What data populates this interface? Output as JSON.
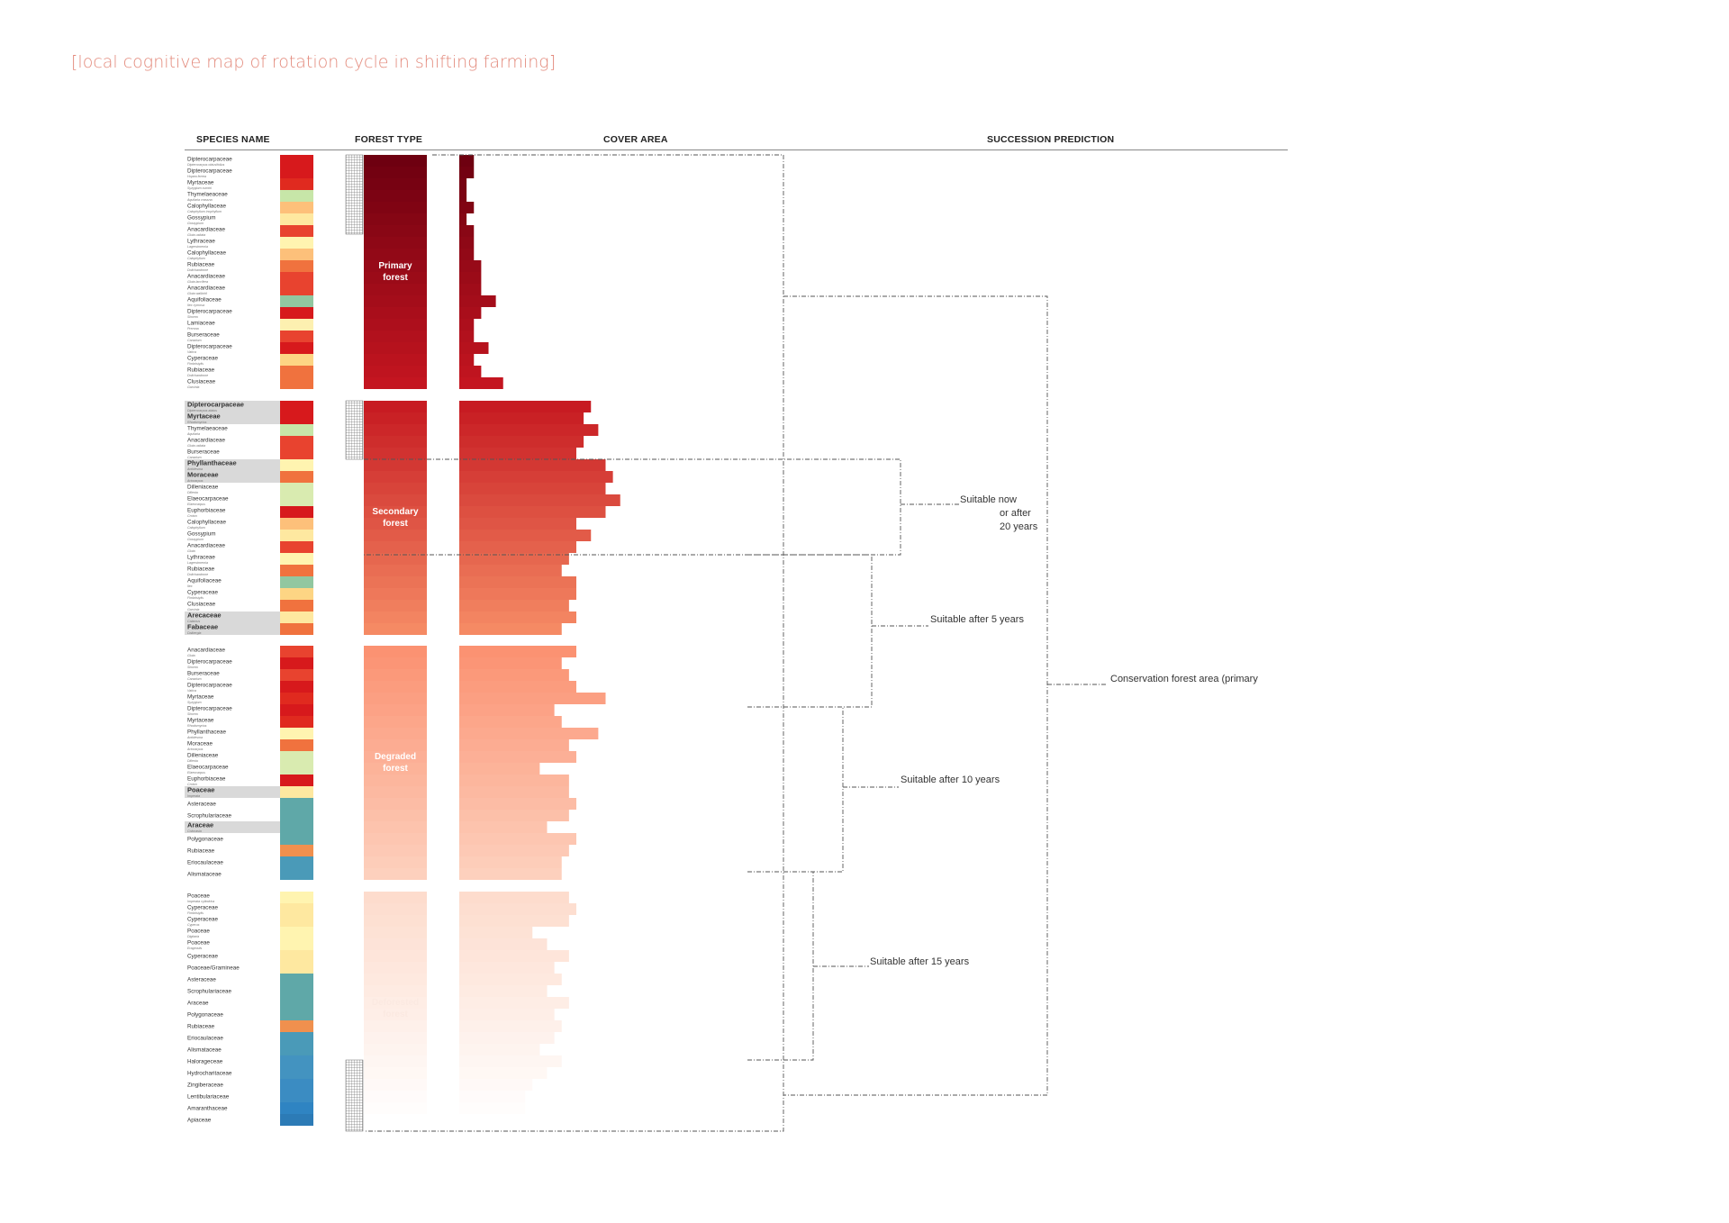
{
  "title": "[local cognitive map of rotation cycle in shifting farming]",
  "headers": {
    "species": "SPECIES NAME",
    "forest_type": "FOREST TYPE",
    "cover_area": "COVER AREA",
    "succession": "SUCCESSION PREDICTION"
  },
  "forest_types": [
    {
      "label": "Primary forest",
      "color": "#a8101c"
    },
    {
      "label": "Secondary forest",
      "color": "#e0504a"
    },
    {
      "label": "Degraded forest",
      "color": "#f8a88a"
    },
    {
      "label": "Deforested forest",
      "color": "#fde8de"
    }
  ],
  "succession_labels": {
    "now_or_after_20": "Suitable now\nor after\n20 years",
    "after_5": "Suitable after 5 years",
    "after_10": "Suitable  after 10 years",
    "after_15": "Suitable after 15 years",
    "conservation": "Conservation forest area (primary"
  },
  "groups": [
    {
      "name": "primary",
      "rows": [
        {
          "family": "Dipterocarpaceae",
          "species": "Dipterocarpus obtusifolius",
          "color": "#d7191c",
          "cover": 0.5,
          "bold": false
        },
        {
          "family": "Dipterocarpaceae",
          "species": "Hopea ferrea",
          "color": "#d7191c",
          "cover": 0.5,
          "bold": false
        },
        {
          "family": "Myrtaceae",
          "species": "Syzygium cumini",
          "color": "#e02a1f",
          "cover": 0.25,
          "bold": false
        },
        {
          "family": "Thymelaeaceae",
          "species": "Aquilaria crassna",
          "color": "#c7e6a8",
          "cover": 0.25,
          "bold": false
        },
        {
          "family": "Calophyllaceae",
          "species": "Calophyllum inophyllum",
          "color": "#fdc07a",
          "cover": 0.5,
          "bold": false
        },
        {
          "family": "Gossypium",
          "species": "Gossypium",
          "color": "#fee8a0",
          "cover": 0.25,
          "bold": false
        },
        {
          "family": "Anacardiaceae",
          "species": "Gluta usitata",
          "color": "#e8432f",
          "cover": 0.5,
          "bold": false
        },
        {
          "family": "Lythraceae",
          "species": "Lagerstroemia",
          "color": "#fff4b0",
          "cover": 0.5,
          "bold": false
        },
        {
          "family": "Calophyllaceae",
          "species": "Calophyllum",
          "color": "#fdc07a",
          "cover": 0.5,
          "bold": false
        },
        {
          "family": "Rubiaceae",
          "species": "Dolichandrone",
          "color": "#f0723e",
          "cover": 0.75,
          "bold": false
        },
        {
          "family": "Anacardiaceae",
          "species": "Gluta laccifera",
          "color": "#e8432f",
          "cover": 0.75,
          "bold": false
        },
        {
          "family": "Anacardiaceae",
          "species": "Gluta wallichii",
          "color": "#e8432f",
          "cover": 0.75,
          "bold": false
        },
        {
          "family": "Aquifoliaceae",
          "species": "Ilex cymosa",
          "color": "#91c7a0",
          "cover": 1.25,
          "bold": false
        },
        {
          "family": "Dipterocarpaceae",
          "species": "Shorea",
          "color": "#d7191c",
          "cover": 0.75,
          "bold": false
        },
        {
          "family": "Lamiaceae",
          "species": "Premna",
          "color": "#fdf0b0",
          "cover": 0.5,
          "bold": false
        },
        {
          "family": "Burseraceae",
          "species": "Canarium",
          "color": "#e8432f",
          "cover": 0.5,
          "bold": false
        },
        {
          "family": "Dipterocarpaceae",
          "species": "Vatica",
          "color": "#d7191c",
          "cover": 1.0,
          "bold": false
        },
        {
          "family": "Cyperaceae",
          "species": "Fimbristylis",
          "color": "#fdd584",
          "cover": 0.5,
          "bold": false
        },
        {
          "family": "Rubiaceae",
          "species": "Dolichandrone",
          "color": "#f0723e",
          "cover": 0.75,
          "bold": false
        },
        {
          "family": "Clusiaceae",
          "species": "Garcinia",
          "color": "#f0723e",
          "cover": 1.5,
          "bold": false
        }
      ]
    },
    {
      "name": "secondary",
      "rows": [
        {
          "family": "Dipterocarpaceae",
          "species": "Dipterocarpus alatus",
          "color": "#d7191c",
          "cover": 4.5,
          "bold": true
        },
        {
          "family": "Myrtaceae",
          "species": "Rhodomyrtus",
          "color": "#d7191c",
          "cover": 4.25,
          "bold": true
        },
        {
          "family": "Thymelaeaceae",
          "species": "Aquilaria",
          "color": "#c7e6a8",
          "cover": 4.75,
          "bold": false
        },
        {
          "family": "Anacardiaceae",
          "species": "Gluta usitata",
          "color": "#e8432f",
          "cover": 4.25,
          "bold": false
        },
        {
          "family": "Burseraceae",
          "species": "Canarium",
          "color": "#e8432f",
          "cover": 4.0,
          "bold": false
        },
        {
          "family": "Phyllanthaceae",
          "species": "Antidesma",
          "color": "#fff4b0",
          "cover": 5.0,
          "bold": true
        },
        {
          "family": "Moraceae",
          "species": "Artocarpus",
          "color": "#f0723e",
          "cover": 5.25,
          "bold": true
        },
        {
          "family": "Dilleniaceae",
          "species": "Dillenia",
          "color": "#d9ebb0",
          "cover": 5.0,
          "bold": false
        },
        {
          "family": "Elaeocarpaceae",
          "species": "Elaeocarpus",
          "color": "#d9ebb0",
          "cover": 5.5,
          "bold": false
        },
        {
          "family": "Euphorbiaceae",
          "species": "Croton",
          "color": "#d7191c",
          "cover": 5.0,
          "bold": false
        },
        {
          "family": "Calophyllaceae",
          "species": "Calophyllum",
          "color": "#fdc07a",
          "cover": 4.0,
          "bold": false
        },
        {
          "family": "Gossypium",
          "species": "Gossypium",
          "color": "#fee8a0",
          "cover": 4.5,
          "bold": false
        },
        {
          "family": "Anacardiaceae",
          "species": "Gluta",
          "color": "#e8432f",
          "cover": 4.0,
          "bold": false
        },
        {
          "family": "Lythraceae",
          "species": "Lagerstroemia",
          "color": "#fff4b0",
          "cover": 3.75,
          "bold": false
        },
        {
          "family": "Rubiaceae",
          "species": "Dolichandrone",
          "color": "#f0723e",
          "cover": 3.5,
          "bold": false
        },
        {
          "family": "Aquifoliaceae",
          "species": "Ilex",
          "color": "#91c7a0",
          "cover": 4.0,
          "bold": false
        },
        {
          "family": "Cyperaceae",
          "species": "Fimbristylis",
          "color": "#fdd584",
          "cover": 4.0,
          "bold": false
        },
        {
          "family": "Clusiaceae",
          "species": "Garcinia",
          "color": "#f0723e",
          "cover": 3.75,
          "bold": false
        },
        {
          "family": "Arecaceae",
          "species": "Calamus",
          "color": "#fee8a0",
          "cover": 4.0,
          "bold": true
        },
        {
          "family": "Fabaceae",
          "species": "Dalbergia",
          "color": "#f0723e",
          "cover": 3.5,
          "bold": true
        }
      ]
    },
    {
      "name": "degraded",
      "rows": [
        {
          "family": "Anacardiaceae",
          "species": "Gluta",
          "color": "#e8432f",
          "cover": 4.0,
          "bold": false
        },
        {
          "family": "Dipterocarpaceae",
          "species": "Shorea",
          "color": "#d7191c",
          "cover": 3.5,
          "bold": false
        },
        {
          "family": "Burseraceae",
          "species": "Canarium",
          "color": "#e8432f",
          "cover": 3.75,
          "bold": false
        },
        {
          "family": "Dipterocarpaceae",
          "species": "Vatica",
          "color": "#d7191c",
          "cover": 4.0,
          "bold": false
        },
        {
          "family": "Myrtaceae",
          "species": "Syzygium",
          "color": "#e02a1f",
          "cover": 5.0,
          "bold": false
        },
        {
          "family": "Dipterocarpaceae",
          "species": "Shorea",
          "color": "#d7191c",
          "cover": 3.25,
          "bold": false
        },
        {
          "family": "Myrtaceae",
          "species": "Rhodomyrtus",
          "color": "#e02a1f",
          "cover": 3.5,
          "bold": false
        },
        {
          "family": "Phyllanthaceae",
          "species": "Antidesma",
          "color": "#fff4b0",
          "cover": 4.75,
          "bold": false
        },
        {
          "family": "Moraceae",
          "species": "Artocarpus",
          "color": "#f0723e",
          "cover": 3.75,
          "bold": false
        },
        {
          "family": "Dilleniaceae",
          "species": "Dillenia",
          "color": "#d9ebb0",
          "cover": 4.0,
          "bold": false
        },
        {
          "family": "Elaeocarpaceae",
          "species": "Elaeocarpus",
          "color": "#d9ebb0",
          "cover": 2.75,
          "bold": false
        },
        {
          "family": "Euphorbiaceae",
          "species": "Croton",
          "color": "#d7191c",
          "cover": 3.75,
          "bold": false
        },
        {
          "family": "Poaceae",
          "species": "Imperata",
          "color": "#fee8a0",
          "cover": 3.75,
          "bold": true
        },
        {
          "family": "Asteraceae",
          "species": "",
          "color": "#5fa8a8",
          "cover": 4.0,
          "bold": false
        },
        {
          "family": "Scrophulariaceae",
          "species": "",
          "color": "#5fa8a8",
          "cover": 3.75,
          "bold": false
        },
        {
          "family": "Araceae",
          "species": "Colocasia",
          "color": "#5fa8a8",
          "cover": 3.0,
          "bold": true
        },
        {
          "family": "Polygonaceae",
          "species": "",
          "color": "#5fa8a8",
          "cover": 4.0,
          "bold": false
        },
        {
          "family": "Rubiaceae",
          "species": "",
          "color": "#f0904e",
          "cover": 3.75,
          "bold": false
        },
        {
          "family": "Eriocaulaceae",
          "species": "",
          "color": "#4a9ab8",
          "cover": 3.5,
          "bold": false
        },
        {
          "family": "Alismataceae",
          "species": "",
          "color": "#4a9ab8",
          "cover": 3.5,
          "bold": false
        }
      ]
    },
    {
      "name": "deforested",
      "rows": [
        {
          "family": "Poaceae",
          "species": "Imperata cylindrica",
          "color": "#fff4b0",
          "cover": 3.75,
          "bold": false
        },
        {
          "family": "Cyperaceae",
          "species": "Fimbristylis",
          "color": "#fee8a0",
          "cover": 4.0,
          "bold": false
        },
        {
          "family": "Cyperaceae",
          "species": "Cyperus",
          "color": "#fee8a0",
          "cover": 3.75,
          "bold": false
        },
        {
          "family": "Poaceae",
          "species": "Digitaria",
          "color": "#fff4b0",
          "cover": 2.5,
          "bold": false
        },
        {
          "family": "Poaceae",
          "species": "Eragrostis",
          "color": "#fff4b0",
          "cover": 3.0,
          "bold": false
        },
        {
          "family": "Cyperaceae",
          "species": "",
          "color": "#fee8a0",
          "cover": 3.75,
          "bold": false
        },
        {
          "family": "Poaceae/Gramineae",
          "species": "",
          "color": "#fee8a0",
          "cover": 3.25,
          "bold": false
        },
        {
          "family": "Asteraceae",
          "species": "",
          "color": "#5fa8a8",
          "cover": 3.5,
          "bold": false
        },
        {
          "family": "Scrophulariaceae",
          "species": "",
          "color": "#5fa8a8",
          "cover": 3.0,
          "bold": false
        },
        {
          "family": "Araceae",
          "species": "",
          "color": "#5fa8a8",
          "cover": 3.75,
          "bold": false
        },
        {
          "family": "Polygonaceae",
          "species": "",
          "color": "#5fa8a8",
          "cover": 3.25,
          "bold": false
        },
        {
          "family": "Rubiaceae",
          "species": "",
          "color": "#f0904e",
          "cover": 3.5,
          "bold": false
        },
        {
          "family": "Eriocaulaceae",
          "species": "",
          "color": "#4a9ab8",
          "cover": 3.25,
          "bold": false
        },
        {
          "family": "Alismataceae",
          "species": "",
          "color": "#4a9ab8",
          "cover": 2.75,
          "bold": false
        },
        {
          "family": "Halorageceae",
          "species": "",
          "color": "#4393c0",
          "cover": 3.5,
          "bold": false
        },
        {
          "family": "Hydrocharitaceae",
          "species": "",
          "color": "#4393c0",
          "cover": 3.0,
          "bold": false
        },
        {
          "family": "Zingiberaceae",
          "species": "",
          "color": "#3b8cc2",
          "cover": 2.5,
          "bold": false
        },
        {
          "family": "Lentibulariaceae",
          "species": "",
          "color": "#3b8cc2",
          "cover": 2.25,
          "bold": false
        },
        {
          "family": "Amaranthaceae",
          "species": "",
          "color": "#2f84c2",
          "cover": 2.25,
          "bold": false
        },
        {
          "family": "Apiaceae",
          "species": "",
          "color": "#2c7bb6",
          "cover": 2.0,
          "bold": false
        }
      ]
    }
  ]
}
